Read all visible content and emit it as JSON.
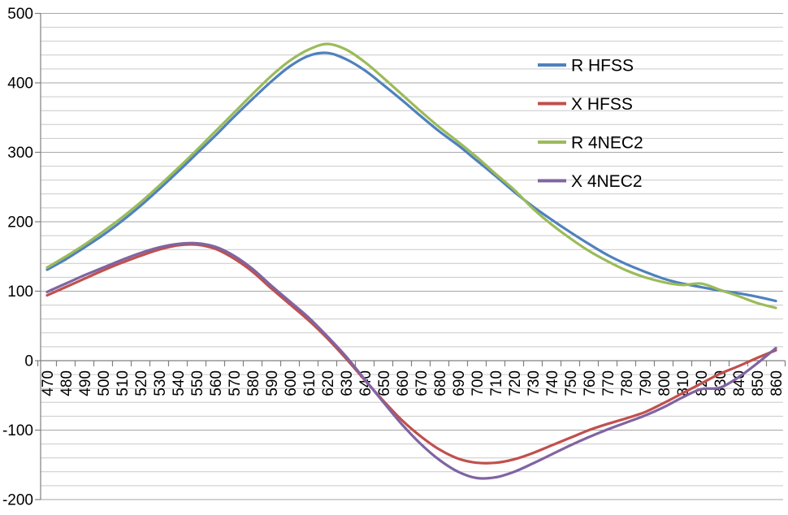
{
  "chart_data": {
    "type": "line",
    "title": "",
    "xlabel": "",
    "ylabel": "",
    "x": [
      470,
      480,
      490,
      500,
      510,
      520,
      530,
      540,
      550,
      560,
      570,
      580,
      590,
      600,
      610,
      620,
      630,
      640,
      650,
      660,
      670,
      680,
      690,
      700,
      710,
      720,
      730,
      740,
      750,
      760,
      770,
      780,
      790,
      800,
      810,
      820,
      830,
      840,
      850,
      860
    ],
    "xlim": [
      470,
      860
    ],
    "ylim": [
      -200,
      500
    ],
    "y_major_step": 100,
    "y_minor_step": 20,
    "grid": "horizontal-only",
    "legend_position": "inside-top-right",
    "series": [
      {
        "name": "R HFSS",
        "color": "#4F81BD",
        "values": [
          131,
          146,
          163,
          181,
          201,
          223,
          247,
          272,
          298,
          324,
          351,
          377,
          402,
          424,
          439,
          443,
          434,
          418,
          397,
          375,
          352,
          330,
          310,
          288,
          266,
          243,
          222,
          203,
          185,
          168,
          152,
          139,
          128,
          118,
          111,
          106,
          101,
          97,
          92,
          86
        ]
      },
      {
        "name": "X HFSS",
        "color": "#C0504D",
        "values": [
          94,
          106,
          118,
          130,
          141,
          151,
          160,
          166,
          167,
          161,
          147,
          128,
          104,
          81,
          58,
          32,
          3,
          -28,
          -58,
          -86,
          -109,
          -128,
          -141,
          -147,
          -147,
          -142,
          -133,
          -122,
          -111,
          -100,
          -91,
          -83,
          -74,
          -61,
          -47,
          -33,
          -19,
          -8,
          4,
          15
        ]
      },
      {
        "name": "R 4NEC2",
        "color": "#9BBB59",
        "values": [
          134,
          150,
          167,
          186,
          206,
          228,
          252,
          277,
          303,
          330,
          357,
          384,
          410,
          432,
          448,
          456,
          448,
          430,
          407,
          383,
          359,
          336,
          315,
          293,
          269,
          246,
          219,
          196,
          176,
          158,
          143,
          130,
          120,
          113,
          109,
          111,
          102,
          93,
          83,
          76
        ]
      },
      {
        "name": "X 4NEC2",
        "color": "#8064A2",
        "values": [
          99,
          111,
          123,
          134,
          145,
          155,
          163,
          168,
          169,
          164,
          151,
          132,
          108,
          85,
          62,
          35,
          6,
          -27,
          -60,
          -92,
          -120,
          -143,
          -160,
          -169,
          -168,
          -160,
          -148,
          -135,
          -122,
          -110,
          -99,
          -89,
          -79,
          -67,
          -53,
          -41,
          -39,
          -24,
          -4,
          18
        ]
      }
    ]
  },
  "axes": {
    "y_tick_labels": [
      "500",
      "400",
      "300",
      "200",
      "100",
      "0",
      "-100",
      "-200"
    ],
    "x_tick_labels": [
      "470",
      "480",
      "490",
      "500",
      "510",
      "520",
      "530",
      "540",
      "550",
      "560",
      "570",
      "580",
      "590",
      "600",
      "610",
      "620",
      "630",
      "640",
      "650",
      "660",
      "670",
      "680",
      "690",
      "700",
      "710",
      "720",
      "730",
      "740",
      "750",
      "760",
      "770",
      "780",
      "790",
      "800",
      "810",
      "820",
      "830",
      "840",
      "850",
      "860"
    ]
  },
  "legend": {
    "items": [
      "R HFSS",
      "X HFSS",
      "R 4NEC2",
      "X 4NEC2"
    ]
  },
  "colors": {
    "background": "#FFFFFF",
    "gridline_minor": "#C9C9C9",
    "gridline_major": "#A6A6A6",
    "axis_line": "#808080",
    "label_text": "#000000"
  }
}
